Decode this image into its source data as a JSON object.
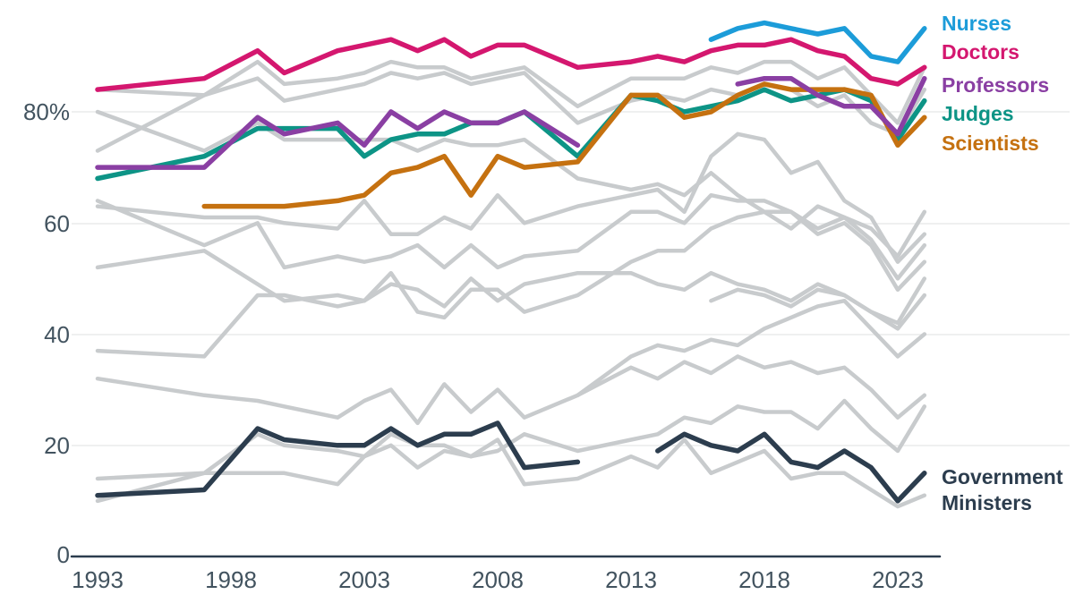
{
  "legend": {
    "nurses": "Nurses",
    "doctors": "Doctors",
    "professors": "Professors",
    "judges": "Judges",
    "scientists": "Scientists",
    "government_line1": "Government",
    "government_line2": "Ministers"
  },
  "axes": {
    "y_ticks": [
      "80%",
      "60",
      "40",
      "20",
      "0"
    ],
    "x_ticks": [
      "1993",
      "1998",
      "2003",
      "2008",
      "2013",
      "2018",
      "2023"
    ]
  },
  "colors": {
    "nurses": "#1C9CD9",
    "doctors": "#D4176F",
    "professors": "#8A3FA3",
    "judges": "#0D9486",
    "scientists": "#C57110",
    "government": "#2C3D4E",
    "background_line": "#C8CBCD",
    "grid": "#EFF0F0",
    "axis": "#2C3D4E",
    "tick_text": "#42535F"
  },
  "chart_data": {
    "type": "line",
    "title": "",
    "xlabel": "",
    "ylabel": "",
    "ylim": [
      0,
      100
    ],
    "xlim": [
      1993,
      2024.5
    ],
    "y_tick_values": [
      0,
      20,
      40,
      60,
      80
    ],
    "x_tick_values": [
      1993,
      1998,
      2003,
      2008,
      2013,
      2018,
      2023
    ],
    "grid": "horizontal-faint",
    "legend_position": "right-of-lines",
    "survey_years": [
      1993,
      1997,
      1999,
      2000,
      2002,
      2003,
      2004,
      2005,
      2006,
      2007,
      2008,
      2009,
      2011,
      2013,
      2014,
      2015,
      2016,
      2017,
      2018,
      2019,
      2020,
      2021,
      2022,
      2023,
      2024
    ],
    "series": [
      {
        "id": "judges",
        "name": "Judges",
        "color": "judges",
        "segments": [
          {
            "years": [
              1993,
              1997,
              1999,
              2000,
              2002,
              2003,
              2004,
              2005,
              2006,
              2007,
              2008,
              2009,
              2011,
              2013,
              2014,
              2015,
              2016,
              2017,
              2018,
              2019,
              2020,
              2021,
              2022,
              2023,
              2024
            ],
            "values": [
              68,
              72,
              77,
              77,
              77,
              72,
              75,
              76,
              76,
              78,
              78,
              80,
              72,
              83,
              82,
              80,
              81,
              82,
              84,
              82,
              83,
              84,
              82,
              75,
              82
            ]
          }
        ]
      },
      {
        "id": "scientists",
        "name": "Scientists",
        "color": "scientists",
        "segments": [
          {
            "years": [
              1997,
              1999,
              2000,
              2002,
              2003,
              2004,
              2005,
              2006,
              2007,
              2008,
              2009,
              2011,
              2013,
              2014,
              2015,
              2016,
              2017,
              2018,
              2019,
              2020,
              2021,
              2022,
              2023,
              2024
            ],
            "values": [
              63,
              63,
              63,
              64,
              65,
              69,
              70,
              72,
              65,
              72,
              70,
              71,
              83,
              83,
              79,
              80,
              83,
              85,
              84,
              84,
              84,
              83,
              74,
              79
            ]
          }
        ]
      },
      {
        "id": "professors",
        "name": "Professors",
        "color": "professors",
        "segments": [
          {
            "years": [
              1993,
              1997,
              1999,
              2000,
              2002,
              2003,
              2004,
              2005,
              2006,
              2007,
              2008,
              2009,
              2011
            ],
            "values": [
              70,
              70,
              79,
              76,
              78,
              74,
              80,
              77,
              80,
              78,
              78,
              80,
              74
            ]
          },
          {
            "years": [
              2017,
              2018,
              2019,
              2020,
              2021,
              2022,
              2023,
              2024
            ],
            "values": [
              85,
              86,
              86,
              83,
              81,
              81,
              76,
              86
            ]
          }
        ]
      },
      {
        "id": "doctors",
        "name": "Doctors",
        "color": "doctors",
        "segments": [
          {
            "years": [
              1993,
              1997,
              1999,
              2000,
              2002,
              2003,
              2004,
              2005,
              2006,
              2007,
              2008,
              2009,
              2011,
              2013,
              2014,
              2015,
              2016,
              2017,
              2018,
              2019,
              2020,
              2021,
              2022,
              2023,
              2024
            ],
            "values": [
              84,
              86,
              91,
              87,
              91,
              92,
              93,
              91,
              93,
              90,
              92,
              92,
              88,
              89,
              90,
              89,
              91,
              92,
              92,
              93,
              91,
              90,
              86,
              85,
              88
            ]
          }
        ]
      },
      {
        "id": "nurses",
        "name": "Nurses",
        "color": "nurses",
        "segments": [
          {
            "years": [
              2016,
              2017,
              2018,
              2019,
              2020,
              2021,
              2022,
              2023,
              2024
            ],
            "values": [
              93,
              95,
              96,
              95,
              94,
              95,
              90,
              89,
              95
            ]
          }
        ]
      },
      {
        "id": "government-ministers",
        "name": "Government Ministers",
        "color": "government",
        "segments": [
          {
            "years": [
              1993,
              1997,
              1999,
              2000,
              2002,
              2003,
              2004,
              2005,
              2006,
              2007,
              2008,
              2009,
              2011
            ],
            "values": [
              11,
              12,
              23,
              21,
              20,
              20,
              23,
              20,
              22,
              22,
              24,
              16,
              17
            ]
          },
          {
            "years": [
              2014,
              2015,
              2016,
              2017,
              2018,
              2019,
              2020,
              2021,
              2022,
              2023,
              2024
            ],
            "values": [
              19,
              22,
              20,
              19,
              22,
              17,
              16,
              19,
              16,
              10,
              15
            ]
          }
        ]
      }
    ],
    "background_series": [
      {
        "years": [
          1993,
          1997,
          1999,
          2000,
          2002,
          2003,
          2004,
          2005,
          2006,
          2007,
          2008,
          2009,
          2011,
          2013,
          2014,
          2015,
          2016,
          2017,
          2018,
          2019,
          2020,
          2021,
          2022,
          2023,
          2024
        ],
        "values": [
          84,
          83,
          89,
          85,
          86,
          87,
          89,
          88,
          88,
          86,
          87,
          88,
          81,
          86,
          86,
          86,
          88,
          87,
          89,
          89,
          86,
          88,
          83,
          78,
          88
        ]
      },
      {
        "years": [
          1993,
          1997,
          1999,
          2000,
          2002,
          2003,
          2004,
          2005,
          2006,
          2007,
          2008,
          2009,
          2011,
          2013,
          2014,
          2015,
          2016,
          2017,
          2018,
          2019,
          2020,
          2021,
          2022,
          2023,
          2024
        ],
        "values": [
          73,
          83,
          86,
          82,
          84,
          85,
          87,
          86,
          87,
          85,
          86,
          87,
          78,
          82,
          83,
          82,
          84,
          83,
          85,
          84,
          81,
          83,
          78,
          76,
          84
        ]
      },
      {
        "years": [
          1993,
          1997,
          1999,
          2000,
          2002,
          2003,
          2004,
          2005,
          2006,
          2007,
          2008,
          2009,
          2011,
          2013,
          2014,
          2015,
          2016,
          2017,
          2018,
          2019,
          2020,
          2021,
          2022,
          2023,
          2024
        ],
        "values": [
          80,
          73,
          78,
          75,
          75,
          75,
          75,
          73,
          75,
          74,
          74,
          75,
          68,
          66,
          67,
          65,
          69,
          65,
          62,
          62,
          58,
          60,
          56,
          48,
          53
        ]
      },
      {
        "years": [
          1993,
          1997,
          1999,
          2000,
          2002,
          2003,
          2004,
          2005,
          2006,
          2007,
          2008,
          2009,
          2011,
          2013,
          2014,
          2015,
          2016,
          2017,
          2018,
          2019,
          2020,
          2021,
          2022,
          2023,
          2024
        ],
        "values": [
          52,
          55,
          49,
          46,
          47,
          46,
          49,
          48,
          45,
          50,
          46,
          49,
          51,
          51,
          49,
          48,
          51,
          49,
          48,
          46,
          49,
          47,
          44,
          42,
          50
        ]
      },
      {
        "years": [
          1993,
          1997,
          1999,
          2000,
          2002,
          2003,
          2004,
          2005,
          2006,
          2007,
          2008,
          2009,
          2011,
          2013,
          2014,
          2015,
          2016,
          2017,
          2018,
          2019,
          2020,
          2021,
          2022,
          2023,
          2024
        ],
        "values": [
          64,
          56,
          60,
          52,
          54,
          53,
          54,
          56,
          52,
          56,
          52,
          54,
          55,
          62,
          62,
          60,
          65,
          64,
          64,
          62,
          59,
          61,
          57,
          50,
          56
        ]
      },
      {
        "years": [
          1993,
          1997,
          1999,
          2000,
          2002,
          2003,
          2004,
          2005,
          2006,
          2007,
          2008,
          2009,
          2011,
          2013,
          2014,
          2015,
          2016,
          2017,
          2018,
          2019,
          2020,
          2021,
          2022,
          2023,
          2024
        ],
        "values": [
          63,
          61,
          61,
          60,
          59,
          64,
          58,
          58,
          61,
          59,
          65,
          60,
          63,
          65,
          66,
          62,
          72,
          76,
          75,
          69,
          71,
          64,
          61,
          53,
          58
        ]
      },
      {
        "years": [
          1993,
          1997,
          1999,
          2000,
          2002,
          2003,
          2004,
          2005,
          2006,
          2007,
          2008,
          2009,
          2011,
          2013,
          2014,
          2015,
          2016,
          2017,
          2018,
          2019,
          2020,
          2021,
          2022,
          2023,
          2024
        ],
        "values": [
          37,
          36,
          47,
          47,
          45,
          46,
          51,
          44,
          43,
          48,
          48,
          44,
          47,
          53,
          55,
          55,
          59,
          61,
          62,
          59,
          63,
          61,
          59,
          54,
          62
        ]
      },
      {
        "years": [
          1993,
          1997,
          1999,
          2000,
          2002,
          2003,
          2004,
          2005,
          2006,
          2007,
          2008,
          2009,
          2011,
          2013,
          2014,
          2015,
          2016,
          2017,
          2018,
          2019,
          2020,
          2021,
          2022,
          2023,
          2024
        ],
        "values": [
          32,
          29,
          28,
          27,
          25,
          28,
          30,
          24,
          31,
          26,
          30,
          25,
          29,
          34,
          32,
          35,
          33,
          36,
          34,
          35,
          33,
          34,
          30,
          25,
          29
        ]
      },
      {
        "years": [
          1993,
          1997,
          1999,
          2000,
          2002,
          2003,
          2004,
          2005,
          2006,
          2007,
          2008,
          2009,
          2011,
          2013,
          2014,
          2015,
          2016,
          2017,
          2018,
          2019,
          2020,
          2021,
          2022,
          2023,
          2024
        ],
        "values": [
          14,
          15,
          22,
          20,
          19,
          18,
          22,
          20,
          20,
          18,
          21,
          13,
          14,
          18,
          16,
          21,
          15,
          17,
          19,
          14,
          15,
          15,
          12,
          9,
          11
        ]
      },
      {
        "years": [
          1993,
          1997,
          1999,
          2000,
          2002,
          2003,
          2004,
          2005,
          2006,
          2007,
          2008,
          2009,
          2011,
          2013,
          2014,
          2015,
          2016,
          2017,
          2018,
          2019,
          2020,
          2021,
          2022,
          2023,
          2024
        ],
        "values": [
          10,
          15,
          15,
          15,
          13,
          18,
          20,
          16,
          19,
          18,
          19,
          22,
          19,
          21,
          22,
          25,
          24,
          27,
          26,
          26,
          23,
          28,
          23,
          19,
          27
        ]
      },
      {
        "years": [
          2011,
          2013,
          2014,
          2015,
          2016,
          2017,
          2018,
          2019,
          2020,
          2021,
          2022,
          2023,
          2024
        ],
        "values": [
          29,
          36,
          38,
          37,
          39,
          38,
          41,
          43,
          45,
          46,
          41,
          36,
          40
        ]
      },
      {
        "years": [
          2016,
          2017,
          2018,
          2019,
          2020,
          2021,
          2022,
          2023,
          2024
        ],
        "values": [
          46,
          48,
          47,
          45,
          48,
          47,
          44,
          41,
          47
        ]
      }
    ]
  }
}
